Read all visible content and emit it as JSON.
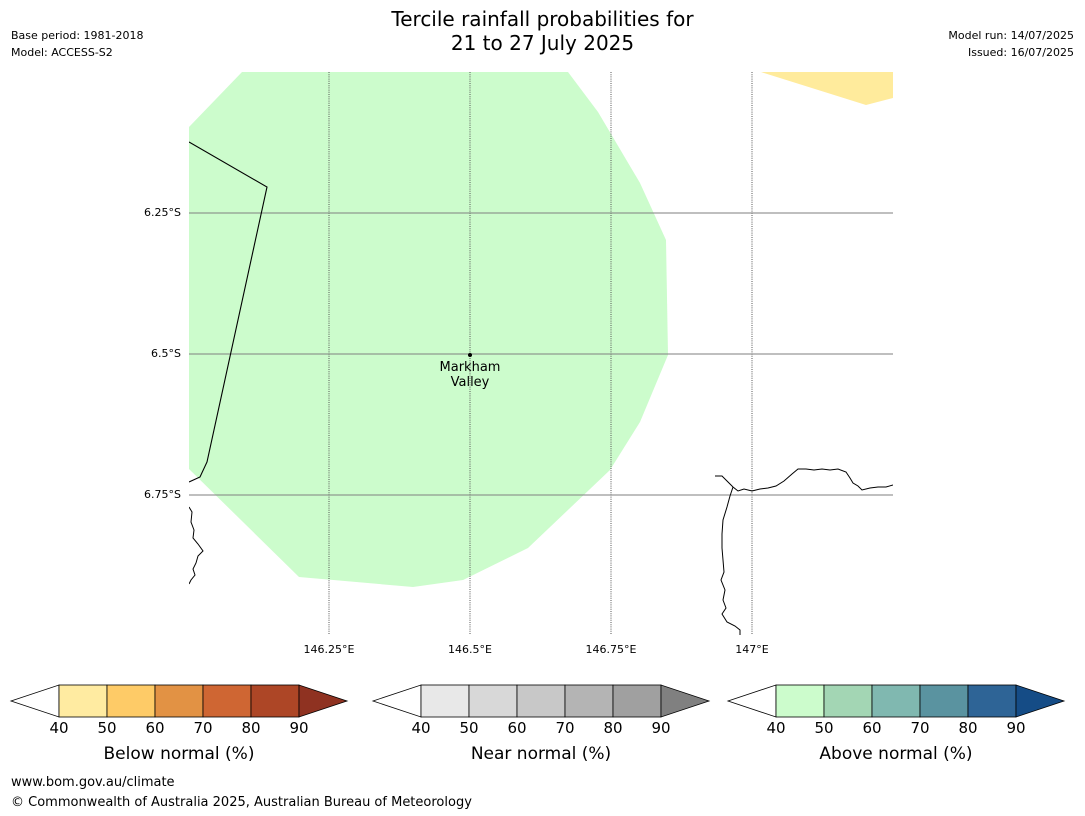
{
  "header": {
    "title_line1": "Tercile rainfall probabilities for",
    "title_line2": "21 to 27 July 2025",
    "base_period": "Base period: 1981-2018",
    "model": "Model: ACCESS-S2",
    "model_run": "Model run: 14/07/2025",
    "issued": "Issued: 16/07/2025"
  },
  "map": {
    "latitude_labels": [
      "6.25°S",
      "6.5°S",
      "6.75°S"
    ],
    "longitude_labels": [
      "146.25°E",
      "146.5°E",
      "146.75°E",
      "147°E"
    ],
    "place": {
      "name_line1": "Markham",
      "name_line2": "Valley"
    },
    "fill_colors": {
      "above_normal_40_50": "#ccfccc",
      "below_normal_40_50": "#ffeb9c"
    }
  },
  "colorbars": [
    {
      "label": "Below normal (%)",
      "ticks": [
        "40",
        "50",
        "60",
        "70",
        "80",
        "90"
      ],
      "colors": [
        "#ffeba1",
        "#fecb67",
        "#e29244",
        "#cf6633",
        "#ad4626",
        "#8f3221"
      ],
      "under_color": "#ffffff"
    },
    {
      "label": "Near normal (%)",
      "ticks": [
        "40",
        "50",
        "60",
        "70",
        "80",
        "90"
      ],
      "colors": [
        "#e8e8e8",
        "#d8d8d8",
        "#c8c8c8",
        "#b4b4b4",
        "#a0a0a0",
        "#808080"
      ],
      "under_color": "#ffffff"
    },
    {
      "label": "Above normal (%)",
      "ticks": [
        "40",
        "50",
        "60",
        "70",
        "80",
        "90"
      ],
      "colors": [
        "#ccfccc",
        "#a3d6b4",
        "#80b8b0",
        "#5a93a0",
        "#2e6496",
        "#154c86"
      ],
      "under_color": "#ffffff"
    }
  ],
  "footer": {
    "url": "www.bom.gov.au/climate",
    "copyright": "© Commonwealth of Australia 2025, Australian Bureau of Meteorology"
  }
}
